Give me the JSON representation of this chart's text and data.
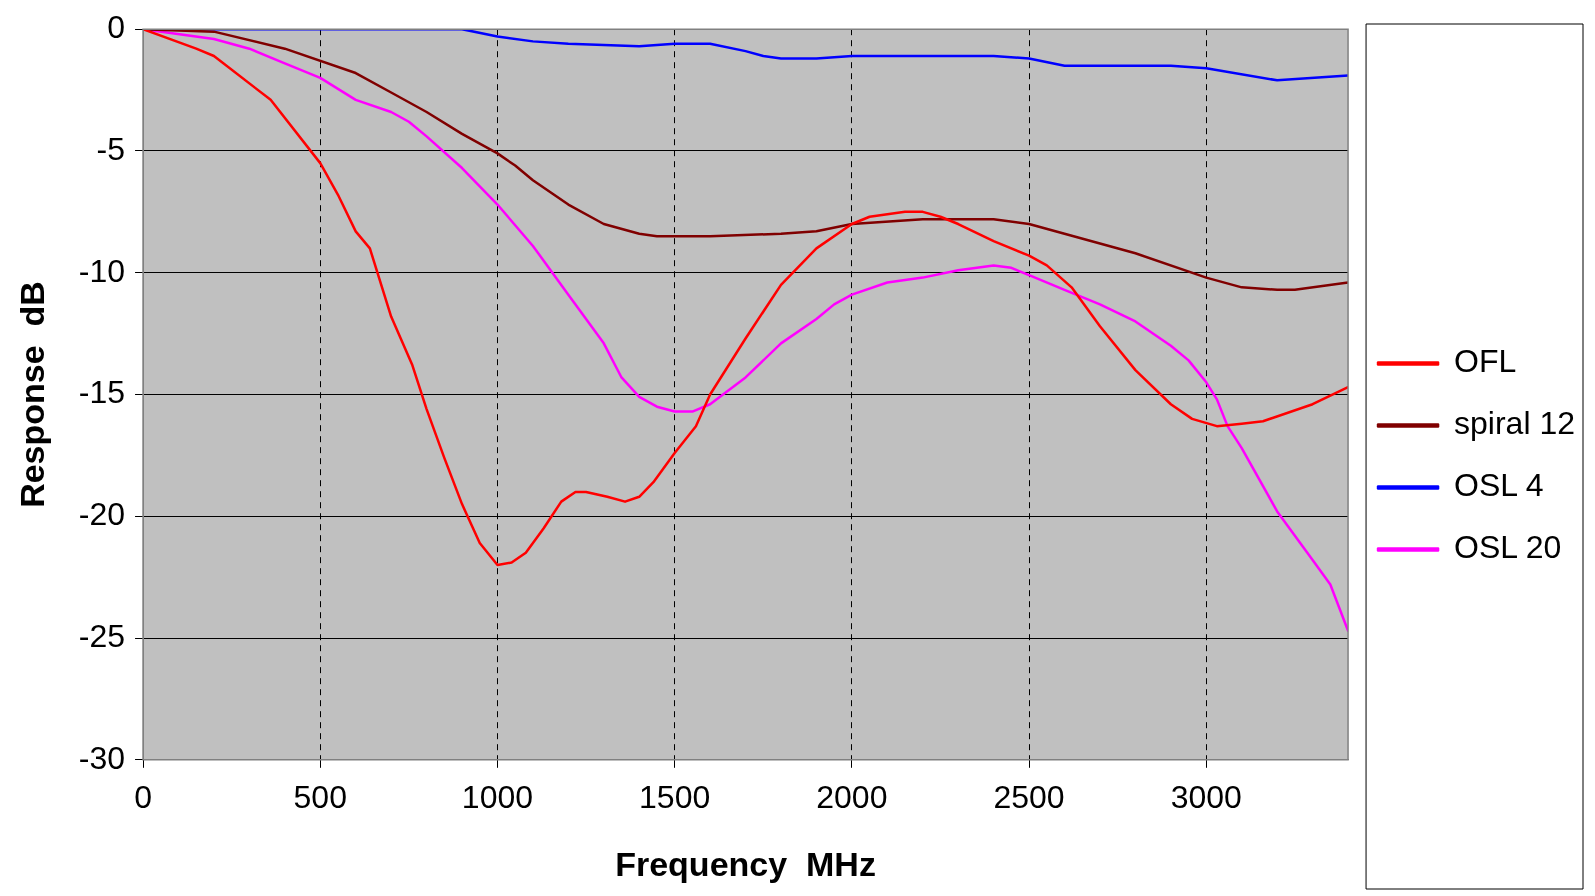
{
  "chart_data": {
    "type": "line",
    "xlabel": "Frequency  MHz",
    "ylabel": "Response  dB",
    "xlim": [
      0,
      3400
    ],
    "xticks": [
      0,
      500,
      1000,
      1500,
      2000,
      2500,
      3000
    ],
    "ylim": [
      -30,
      0
    ],
    "yticks": [
      -30,
      -25,
      -20,
      -15,
      -10,
      -5,
      0
    ],
    "grid": true,
    "legend": "right",
    "marker": "none",
    "line_style": "solid",
    "series": [
      {
        "name": "OFL",
        "color": "#ff0000",
        "x": [
          0,
          150,
          200,
          360,
          500,
          550,
          600,
          640,
          700,
          760,
          800,
          850,
          900,
          950,
          1000,
          1040,
          1080,
          1130,
          1180,
          1220,
          1250,
          1310,
          1360,
          1400,
          1440,
          1500,
          1560,
          1600,
          1700,
          1800,
          1900,
          2000,
          2050,
          2150,
          2200,
          2250,
          2300,
          2400,
          2500,
          2550,
          2620,
          2700,
          2800,
          2900,
          2960,
          3030,
          3100,
          3160,
          3300,
          3400
        ],
        "values": [
          0,
          -0.8,
          -1.1,
          -2.9,
          -5.5,
          -6.8,
          -8.3,
          -9.0,
          -11.8,
          -13.8,
          -15.6,
          -17.6,
          -19.5,
          -21.1,
          -22.0,
          -21.9,
          -21.5,
          -20.5,
          -19.4,
          -19.0,
          -19.0,
          -19.2,
          -19.4,
          -19.2,
          -18.6,
          -17.4,
          -16.3,
          -15.0,
          -12.7,
          -10.5,
          -9.0,
          -8.0,
          -7.7,
          -7.5,
          -7.5,
          -7.7,
          -8.0,
          -8.7,
          -9.3,
          -9.7,
          -10.6,
          -12.2,
          -14.0,
          -15.4,
          -16.0,
          -16.3,
          -16.2,
          -16.1,
          -15.4,
          -14.7
        ]
      },
      {
        "name": "spiral 12",
        "color": "#800000",
        "x": [
          0,
          200,
          400,
          600,
          700,
          800,
          900,
          1000,
          1050,
          1100,
          1200,
          1300,
          1400,
          1450,
          1600,
          1800,
          1900,
          2000,
          2200,
          2400,
          2500,
          2600,
          2800,
          3000,
          3100,
          3200,
          3250,
          3400
        ],
        "values": [
          0,
          -0.1,
          -0.8,
          -1.8,
          -2.6,
          -3.4,
          -4.3,
          -5.1,
          -5.6,
          -6.2,
          -7.2,
          -8.0,
          -8.4,
          -8.5,
          -8.5,
          -8.4,
          -8.3,
          -8.0,
          -7.8,
          -7.8,
          -8.0,
          -8.4,
          -9.2,
          -10.2,
          -10.6,
          -10.7,
          -10.7,
          -10.4
        ]
      },
      {
        "name": "OSL 4",
        "color": "#0000ff",
        "x": [
          0,
          600,
          900,
          1000,
          1100,
          1200,
          1400,
          1500,
          1600,
          1700,
          1750,
          1800,
          1900,
          2000,
          2400,
          2500,
          2600,
          2900,
          3000,
          3200,
          3400
        ],
        "values": [
          0,
          0,
          0,
          -0.3,
          -0.5,
          -0.6,
          -0.7,
          -0.6,
          -0.6,
          -0.9,
          -1.1,
          -1.2,
          -1.2,
          -1.1,
          -1.1,
          -1.2,
          -1.5,
          -1.5,
          -1.6,
          -2.1,
          -1.9
        ]
      },
      {
        "name": "OSL 20",
        "color": "#ff00ff",
        "x": [
          0,
          200,
          300,
          400,
          500,
          600,
          700,
          750,
          800,
          900,
          1000,
          1100,
          1200,
          1300,
          1350,
          1400,
          1450,
          1500,
          1550,
          1600,
          1700,
          1800,
          1900,
          1950,
          2000,
          2100,
          2200,
          2300,
          2400,
          2450,
          2500,
          2600,
          2700,
          2800,
          2900,
          2950,
          3000,
          3030,
          3060,
          3100,
          3200,
          3300,
          3350,
          3400
        ],
        "values": [
          0,
          -0.4,
          -0.8,
          -1.4,
          -2.0,
          -2.9,
          -3.4,
          -3.8,
          -4.4,
          -5.7,
          -7.2,
          -8.9,
          -10.9,
          -12.9,
          -14.3,
          -15.1,
          -15.5,
          -15.7,
          -15.7,
          -15.4,
          -14.3,
          -12.9,
          -11.9,
          -11.3,
          -10.9,
          -10.4,
          -10.2,
          -9.9,
          -9.7,
          -9.8,
          -10.1,
          -10.7,
          -11.3,
          -12.0,
          -13.0,
          -13.6,
          -14.5,
          -15.2,
          -16.3,
          -17.2,
          -19.8,
          -21.8,
          -22.8,
          -24.7
        ]
      }
    ]
  }
}
